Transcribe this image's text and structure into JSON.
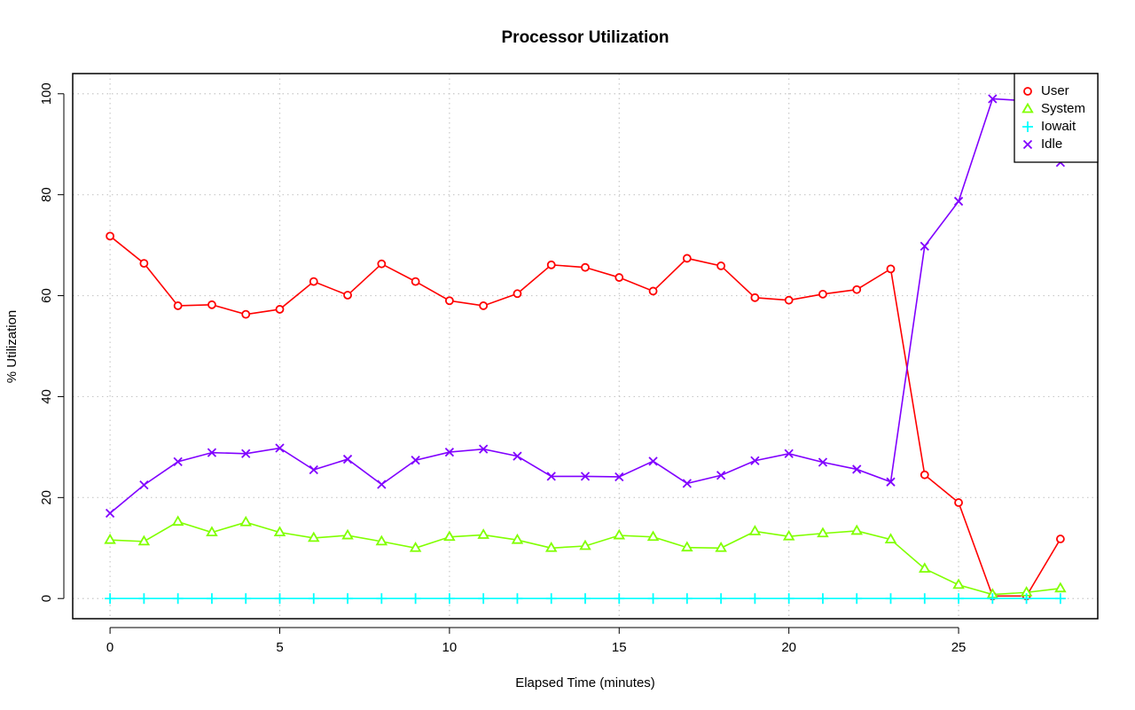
{
  "chart_data": {
    "type": "line",
    "title": "Processor Utilization",
    "xlabel": "Elapsed Time (minutes)",
    "ylabel": "% Utilization",
    "xlim": [
      -1.1,
      29.1
    ],
    "ylim": [
      -4,
      104
    ],
    "xticks": [
      0,
      5,
      10,
      15,
      20,
      25
    ],
    "yticks": [
      0,
      20,
      40,
      60,
      80,
      100
    ],
    "grid": true,
    "legend_position": "top-right",
    "x": [
      0,
      1,
      2,
      3,
      4,
      5,
      6,
      7,
      8,
      9,
      10,
      11,
      12,
      13,
      14,
      15,
      16,
      17,
      18,
      19,
      20,
      21,
      22,
      23,
      24,
      25,
      26,
      27,
      28
    ],
    "series": [
      {
        "name": "User",
        "color": "#ff0000",
        "marker": "circle",
        "values": [
          71.8,
          66.4,
          58.0,
          58.2,
          56.3,
          57.3,
          62.8,
          60.1,
          66.3,
          62.8,
          59.0,
          58.0,
          60.4,
          66.1,
          65.6,
          63.6,
          60.9,
          67.4,
          65.9,
          59.6,
          59.1,
          60.3,
          61.2,
          65.3,
          24.5,
          19.0,
          0.5,
          0.5,
          11.8
        ]
      },
      {
        "name": "System",
        "color": "#80ff00",
        "marker": "triangle",
        "values": [
          11.6,
          11.3,
          15.2,
          13.1,
          15.1,
          13.1,
          12.0,
          12.5,
          11.3,
          10.0,
          12.2,
          12.6,
          11.6,
          10.0,
          10.4,
          12.5,
          12.2,
          10.1,
          10.0,
          13.3,
          12.3,
          12.9,
          13.4,
          11.7,
          5.9,
          2.7,
          0.8,
          1.2,
          2.0
        ]
      },
      {
        "name": "Iowait",
        "color": "#00ffff",
        "marker": "plus",
        "values": [
          0,
          0,
          0,
          0,
          0,
          0,
          0,
          0,
          0,
          0,
          0,
          0,
          0,
          0,
          0,
          0,
          0,
          0,
          0,
          0,
          0,
          0,
          0,
          0,
          0,
          0,
          0,
          0,
          0
        ]
      },
      {
        "name": "Idle",
        "color": "#8000ff",
        "marker": "cross",
        "values": [
          16.9,
          22.5,
          27.1,
          28.9,
          28.7,
          29.8,
          25.5,
          27.6,
          22.6,
          27.4,
          29.0,
          29.6,
          28.2,
          24.2,
          24.2,
          24.1,
          27.2,
          22.8,
          24.4,
          27.3,
          28.7,
          27.0,
          25.6,
          23.1,
          69.8,
          78.7,
          99.0,
          98.6,
          86.4
        ]
      }
    ]
  }
}
